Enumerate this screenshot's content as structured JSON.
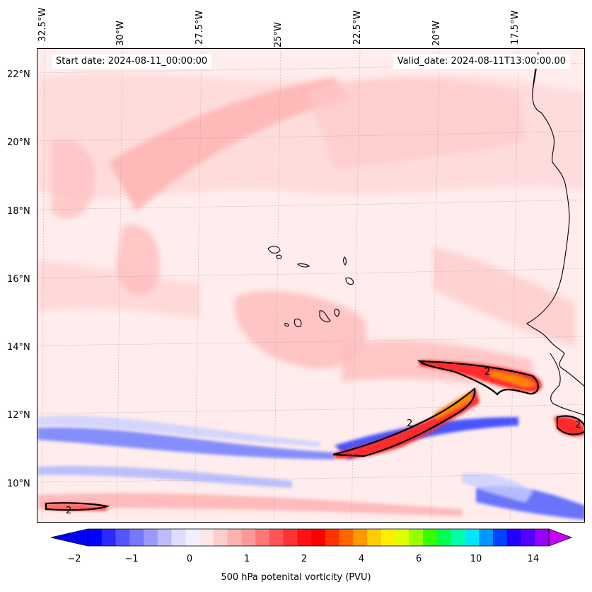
{
  "map": {
    "start_date_text": "Start date: 2024-08-11_00:00:00",
    "valid_date_text": "Valid_date: 2024-08-11T13:00:00.00",
    "lon_labels": [
      "32.5°W",
      "30°W",
      "27.5°W",
      "25°W",
      "22.5°W",
      "20°W",
      "17.5°W"
    ],
    "lat_labels": [
      "22°N",
      "20°N",
      "18°N",
      "16°N",
      "14°N",
      "12°N",
      "10°N"
    ],
    "contour_label": "2",
    "contour_labels_count": 4
  },
  "colorbar": {
    "tick_labels": [
      "−2",
      "−1",
      "0",
      "1",
      "2",
      "4",
      "6",
      "10",
      "14"
    ],
    "label": "500 hPa potenital vorticity (PVU)",
    "colors": [
      "#0000ff",
      "#2a2aff",
      "#5555ff",
      "#7777ff",
      "#9999ff",
      "#bbbbff",
      "#ddddff",
      "#f0f0ff",
      "#ffe6e6",
      "#ffcccc",
      "#ffb0b0",
      "#ff9999",
      "#ff7777",
      "#ff5555",
      "#ff3333",
      "#ff1111",
      "#ff0000",
      "#ff3300",
      "#ff6600",
      "#ff9900",
      "#ffcc00",
      "#ffee00",
      "#ddff00",
      "#99ff00",
      "#33ff00",
      "#00ff55",
      "#00ffaa",
      "#00e5ff",
      "#0099ff",
      "#0044ff",
      "#2200ff",
      "#5500ff",
      "#9900ff"
    ],
    "under_color": "#0000ff",
    "over_color": "#cc00ff"
  },
  "palette": {
    "background_pink": "#ffecec",
    "light_pink": "#ffd6d6",
    "mid_pink": "#ffb3b3",
    "red": "#ff2a2a",
    "orange": "#ff8800",
    "blue": "#3344ff",
    "light_blue": "#c9d0ff",
    "coast": "#000000"
  }
}
